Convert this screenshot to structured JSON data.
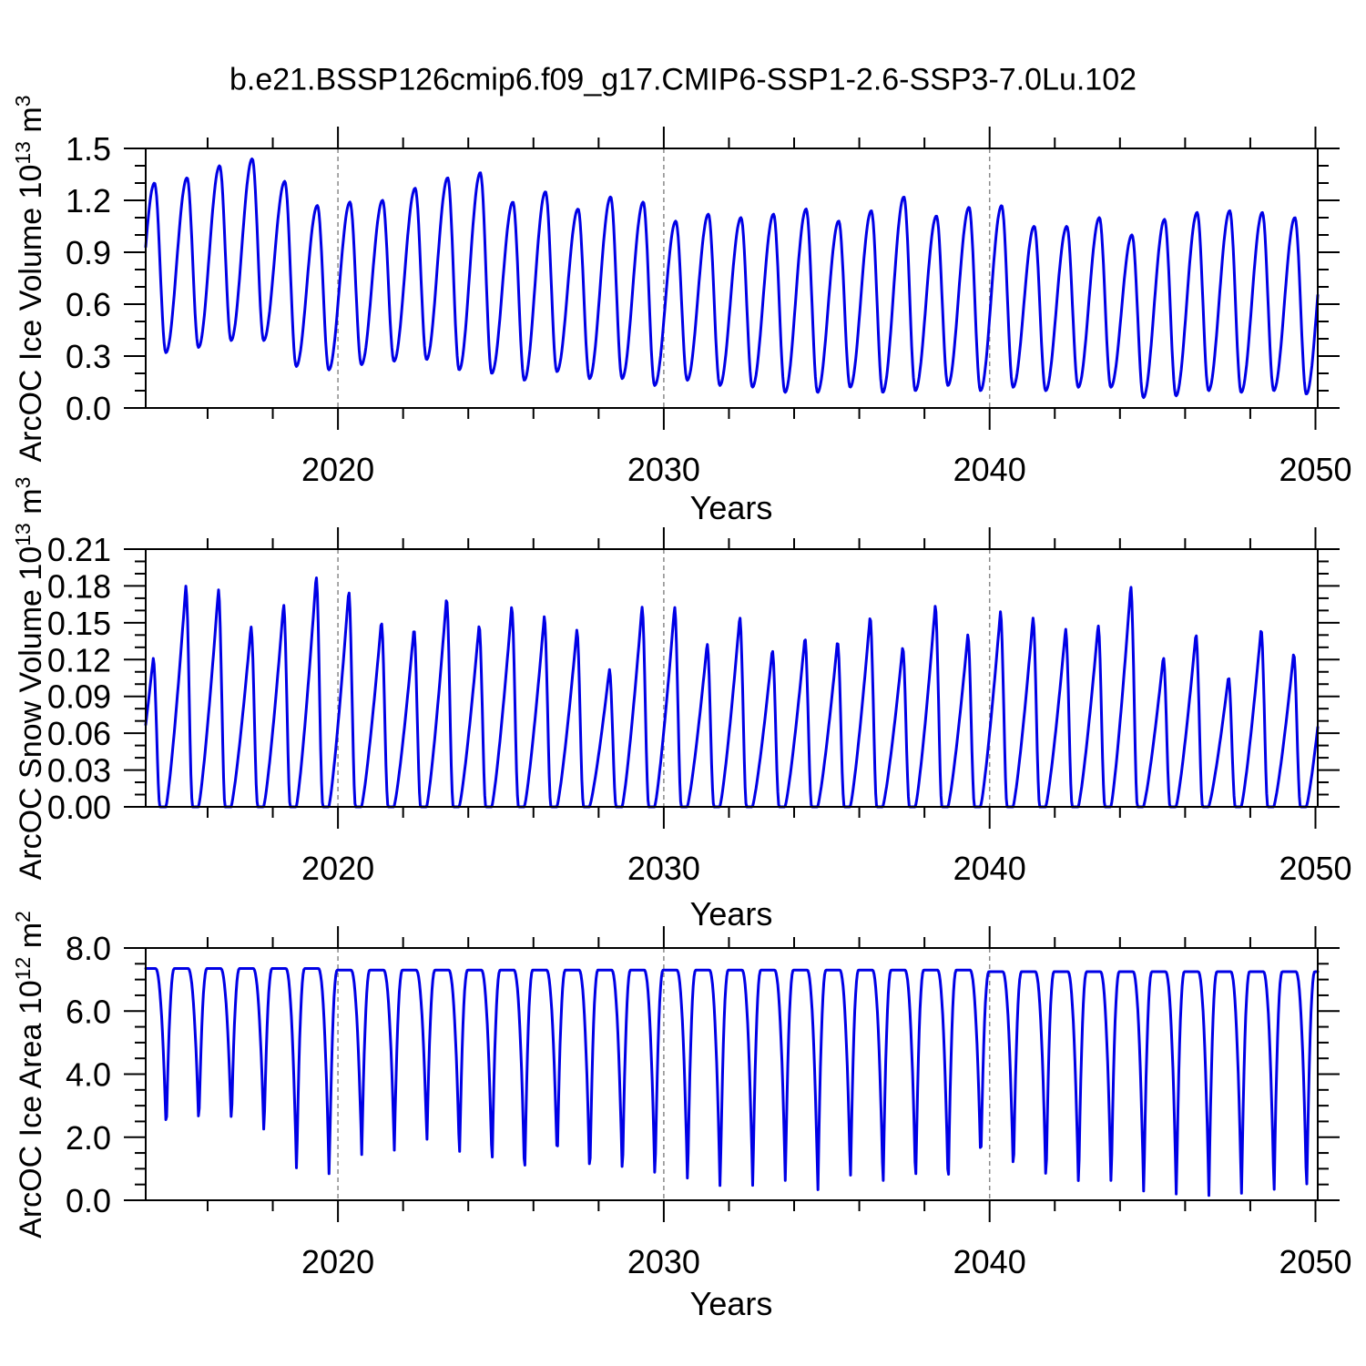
{
  "title": "b.e21.BSSP126cmip6.f09_g17.CMIP6-SSP1-2.6-SSP3-7.0Lu.102",
  "line_color": "#0000e6",
  "grid_color": "#8a8a8a",
  "axis_color": "#000000",
  "chart_data": [
    {
      "type": "line",
      "panel": "ice-volume",
      "ylabel": "ArcOC Ice Volume 10^13 m^3",
      "ylabel_main": "ArcOC Ice Volume 10",
      "ylabel_exp": "13",
      "ylabel_unit": " m",
      "ylabel_unit_exp": "3",
      "xlabel": "Years",
      "xlim": [
        2014.1,
        2050.07
      ],
      "ylim": [
        0,
        1.5
      ],
      "yticks": [
        {
          "v": 0.0,
          "label": "0.0"
        },
        {
          "v": 0.3,
          "label": "0.3"
        },
        {
          "v": 0.6,
          "label": "0.6"
        },
        {
          "v": 0.9,
          "label": "0.9"
        },
        {
          "v": 1.2,
          "label": "1.2"
        },
        {
          "v": 1.5,
          "label": "1.5"
        }
      ],
      "y_minor_step": 0.1,
      "xticks": [
        {
          "v": 2020,
          "label": "2020"
        },
        {
          "v": 2030,
          "label": "2030"
        },
        {
          "v": 2040,
          "label": "2040"
        },
        {
          "v": 2050,
          "label": "2050"
        }
      ],
      "x_minor_step": 2,
      "gridlines_x": [
        2020,
        2030,
        2040
      ],
      "series": {
        "shape": "smooth_annual",
        "peak_phase": 0.37,
        "trough_phase": 0.72,
        "lead_trough": {
          "year": 2013,
          "value": 0.3
        },
        "years": [
          2014,
          2015,
          2016,
          2017,
          2018,
          2019,
          2020,
          2021,
          2022,
          2023,
          2024,
          2025,
          2026,
          2027,
          2028,
          2029,
          2030,
          2031,
          2032,
          2033,
          2034,
          2035,
          2036,
          2037,
          2038,
          2039,
          2040,
          2041,
          2042,
          2043,
          2044,
          2045,
          2046,
          2047,
          2048,
          2049
        ],
        "peaks": [
          1.3,
          1.33,
          1.4,
          1.44,
          1.31,
          1.17,
          1.19,
          1.2,
          1.27,
          1.33,
          1.36,
          1.19,
          1.25,
          1.15,
          1.22,
          1.19,
          1.08,
          1.12,
          1.1,
          1.12,
          1.15,
          1.08,
          1.14,
          1.22,
          1.11,
          1.16,
          1.17,
          1.05,
          1.05,
          1.1,
          1.0,
          1.09,
          1.13,
          1.14,
          1.13,
          1.1
        ],
        "troughs": [
          0.32,
          0.35,
          0.39,
          0.39,
          0.24,
          0.22,
          0.25,
          0.27,
          0.28,
          0.22,
          0.2,
          0.16,
          0.21,
          0.17,
          0.17,
          0.13,
          0.16,
          0.13,
          0.12,
          0.09,
          0.09,
          0.12,
          0.09,
          0.1,
          0.13,
          0.1,
          0.12,
          0.1,
          0.12,
          0.12,
          0.06,
          0.07,
          0.1,
          0.09,
          0.1,
          0.08
        ],
        "next_peak": 1.1
      }
    },
    {
      "type": "line",
      "panel": "snow-volume",
      "ylabel": "ArcOC Snow Volume 10^13 m^3",
      "ylabel_main": "ArcOC Snow Volume 10",
      "ylabel_exp": "13",
      "ylabel_unit": " m",
      "ylabel_unit_exp": "3",
      "xlabel": "Years",
      "xlim": [
        2014.1,
        2050.07
      ],
      "ylim": [
        0,
        0.21
      ],
      "yticks": [
        {
          "v": 0.0,
          "label": "0.00"
        },
        {
          "v": 0.03,
          "label": "0.03"
        },
        {
          "v": 0.06,
          "label": "0.06"
        },
        {
          "v": 0.09,
          "label": "0.09"
        },
        {
          "v": 0.12,
          "label": "0.12"
        },
        {
          "v": 0.15,
          "label": "0.15"
        },
        {
          "v": 0.18,
          "label": "0.18"
        },
        {
          "v": 0.21,
          "label": "0.21"
        }
      ],
      "y_minor_step": 0.01,
      "xticks": [
        {
          "v": 2020,
          "label": "2020"
        },
        {
          "v": 2030,
          "label": "2030"
        },
        {
          "v": 2040,
          "label": "2040"
        },
        {
          "v": 2050,
          "label": "2050"
        }
      ],
      "x_minor_step": 2,
      "gridlines_x": [
        2020,
        2030,
        2040
      ],
      "series": {
        "shape": "sawtooth_snow",
        "peak_phase": 0.33,
        "zero_start_phase": 0.54,
        "zero_end_phase": 0.72,
        "years": [
          2014,
          2015,
          2016,
          2017,
          2018,
          2019,
          2020,
          2021,
          2022,
          2023,
          2024,
          2025,
          2026,
          2027,
          2028,
          2029,
          2030,
          2031,
          2032,
          2033,
          2034,
          2035,
          2036,
          2037,
          2038,
          2039,
          2040,
          2041,
          2042,
          2043,
          2044,
          2045,
          2046,
          2047,
          2048,
          2049
        ],
        "peaks": [
          0.121,
          0.18,
          0.177,
          0.147,
          0.165,
          0.188,
          0.176,
          0.151,
          0.145,
          0.17,
          0.148,
          0.163,
          0.155,
          0.144,
          0.112,
          0.163,
          0.163,
          0.133,
          0.155,
          0.128,
          0.138,
          0.135,
          0.155,
          0.13,
          0.164,
          0.14,
          0.159,
          0.154,
          0.145,
          0.148,
          0.18,
          0.122,
          0.141,
          0.106,
          0.145,
          0.125
        ],
        "troughs_value": 0.0,
        "next_peak": 0.13
      }
    },
    {
      "type": "line",
      "panel": "ice-area",
      "ylabel": "ArcOC Ice Area 10^12 m^2",
      "ylabel_main": "ArcOC Ice Area 10",
      "ylabel_exp": "12",
      "ylabel_unit": " m",
      "ylabel_unit_exp": "2",
      "xlabel": "Years",
      "xlim": [
        2014.1,
        2050.07
      ],
      "ylim": [
        0,
        8.0
      ],
      "yticks": [
        {
          "v": 0.0,
          "label": "0.0"
        },
        {
          "v": 2.0,
          "label": "2.0"
        },
        {
          "v": 4.0,
          "label": "4.0"
        },
        {
          "v": 6.0,
          "label": "6.0"
        },
        {
          "v": 8.0,
          "label": "8.0"
        }
      ],
      "y_minor_step": 0.5,
      "xticks": [
        {
          "v": 2020,
          "label": "2020"
        },
        {
          "v": 2030,
          "label": "2030"
        },
        {
          "v": 2040,
          "label": "2040"
        },
        {
          "v": 2050,
          "label": "2050"
        }
      ],
      "x_minor_step": 2,
      "gridlines_x": [
        2020,
        2030,
        2040
      ],
      "series": {
        "shape": "plateau_area",
        "fall_start_phase": 0.4,
        "min_phase": 0.73,
        "rise_end_phase": 0.98,
        "years": [
          2014,
          2015,
          2016,
          2017,
          2018,
          2019,
          2020,
          2021,
          2022,
          2023,
          2024,
          2025,
          2026,
          2027,
          2028,
          2029,
          2030,
          2031,
          2032,
          2033,
          2034,
          2035,
          2036,
          2037,
          2038,
          2039,
          2040,
          2041,
          2042,
          2043,
          2044,
          2045,
          2046,
          2047,
          2048,
          2049
        ],
        "plateaus": [
          7.35,
          7.35,
          7.35,
          7.35,
          7.35,
          7.35,
          7.3,
          7.3,
          7.3,
          7.3,
          7.3,
          7.3,
          7.3,
          7.3,
          7.3,
          7.3,
          7.3,
          7.3,
          7.3,
          7.3,
          7.3,
          7.3,
          7.3,
          7.3,
          7.3,
          7.3,
          7.25,
          7.25,
          7.25,
          7.25,
          7.25,
          7.25,
          7.25,
          7.25,
          7.25,
          7.25
        ],
        "minima": [
          2.1,
          2.3,
          2.35,
          2.0,
          0.8,
          0.7,
          1.4,
          1.55,
          1.8,
          1.3,
          1.0,
          0.6,
          1.15,
          0.6,
          0.6,
          0.5,
          0.4,
          0.25,
          0.35,
          0.6,
          0.25,
          0.6,
          0.3,
          0.4,
          0.25,
          1.1,
          0.7,
          0.4,
          0.25,
          0.35,
          0.1,
          0.1,
          0.15,
          0.1,
          0.1,
          0.15
        ]
      }
    }
  ]
}
